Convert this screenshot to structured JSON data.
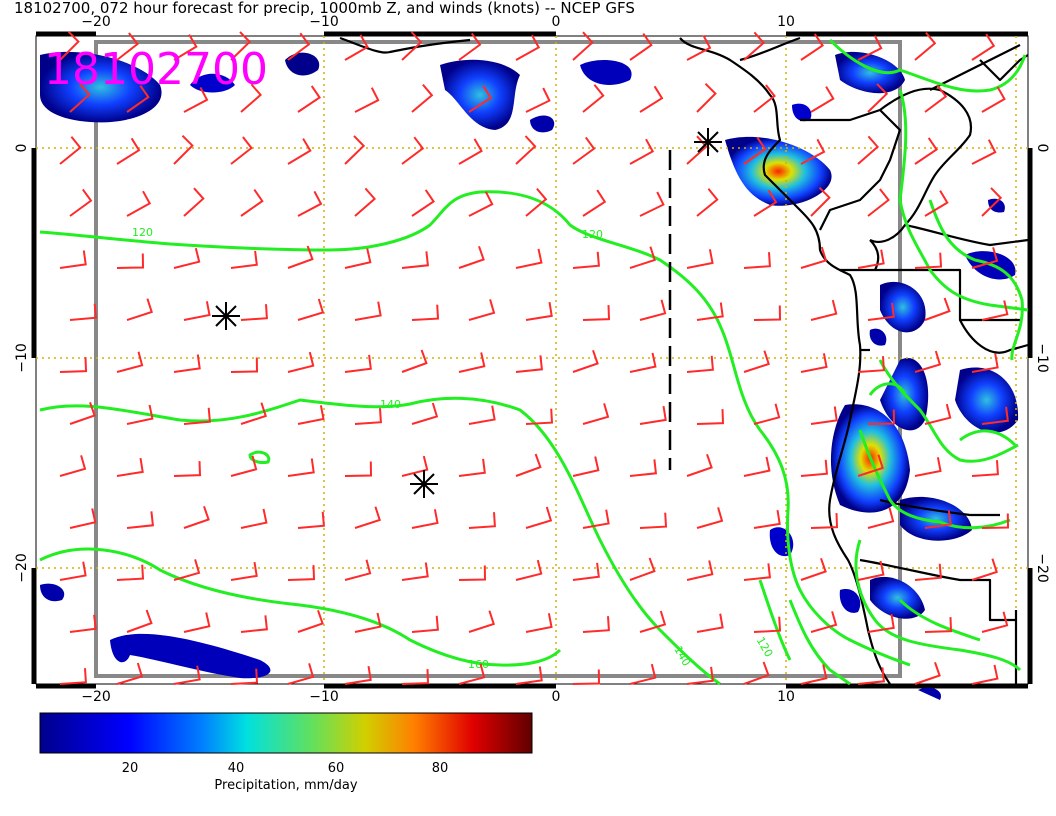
{
  "title": "18102700, 072 hour forecast for precip, 1000mb Z, and winds (knots) -- NCEP GFS",
  "stamp": "18102700",
  "axes": {
    "lon_ticks": [
      "−20",
      "−10",
      "0",
      "10"
    ],
    "lat_ticks": [
      "0",
      "−10",
      "−20"
    ]
  },
  "contours": {
    "color": "#22ee22",
    "labels": [
      "120",
      "120",
      "140",
      "160",
      "140",
      "120"
    ]
  },
  "wind_barb_color": "#ff2a2a",
  "colorbar": {
    "title": "Precipitation, mm/day",
    "ticks": [
      "20",
      "40",
      "60",
      "80"
    ],
    "ramp": [
      "#00008b",
      "#0000ff",
      "#0080ff",
      "#00e0e0",
      "#60e060",
      "#d0d000",
      "#ff8000",
      "#e00000",
      "#600000"
    ]
  }
}
